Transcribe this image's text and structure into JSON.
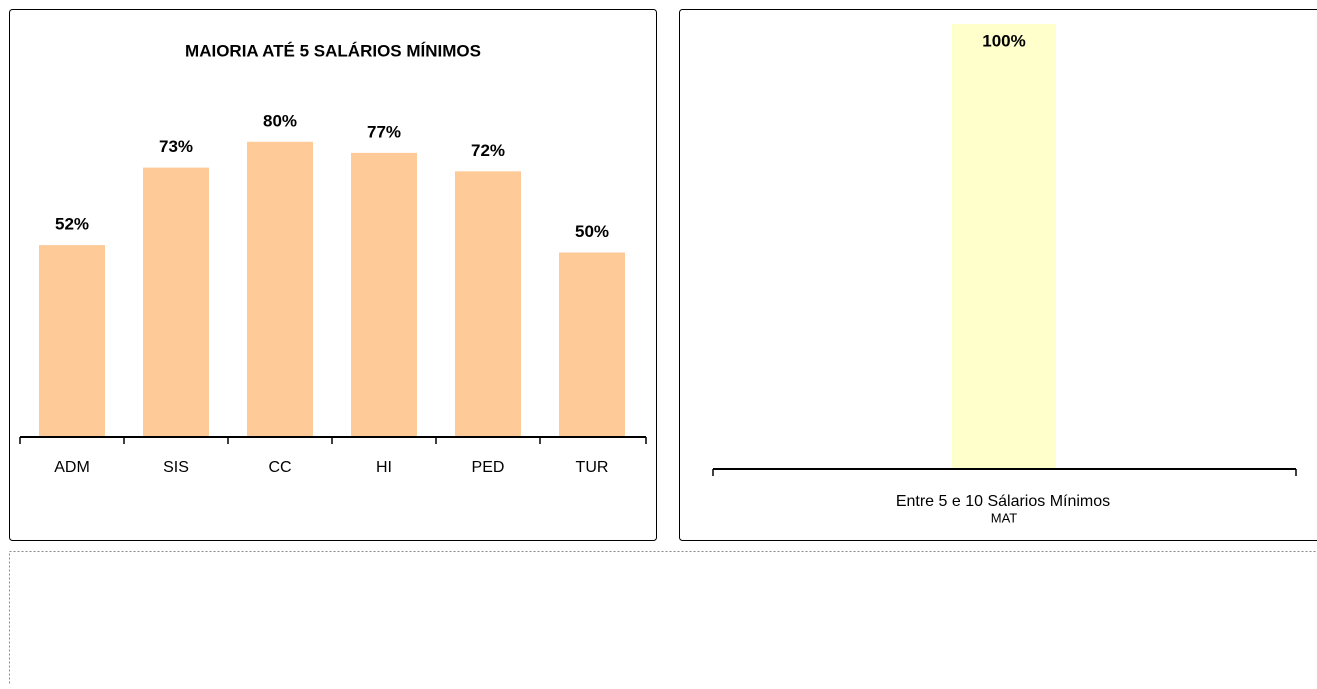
{
  "chart_data": [
    {
      "type": "bar",
      "title": "MAIORIA ATÉ 5 SALÁRIOS MÍNIMOS",
      "categories": [
        "ADM",
        "SIS",
        "CC",
        "HI",
        "PED",
        "TUR"
      ],
      "values": [
        52,
        73,
        80,
        77,
        72,
        50
      ],
      "value_labels": [
        "52%",
        "73%",
        "80%",
        "77%",
        "72%",
        "50%"
      ],
      "color": "#fdca98",
      "ylim": [
        0,
        100
      ]
    },
    {
      "type": "bar",
      "x_label": "Entre 5 e 10 Sálarios Mínimos",
      "categories": [
        "MAT"
      ],
      "values": [
        100
      ],
      "value_labels": [
        "100%"
      ],
      "color": "#ffffcc",
      "ylim": [
        0,
        100
      ]
    }
  ]
}
